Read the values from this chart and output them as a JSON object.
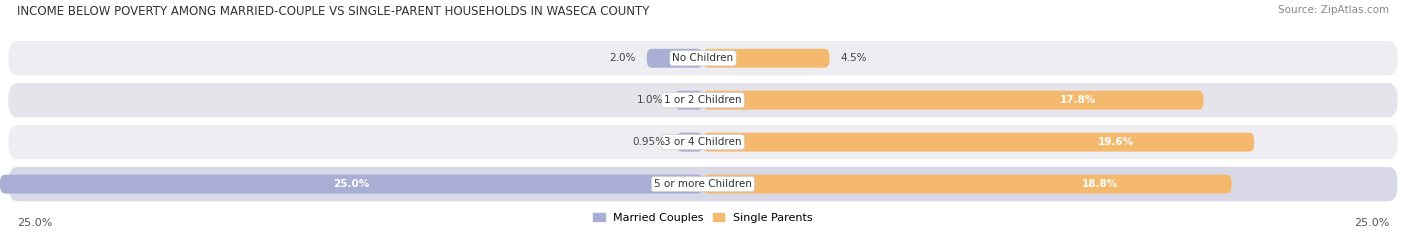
{
  "title": "INCOME BELOW POVERTY AMONG MARRIED-COUPLE VS SINGLE-PARENT HOUSEHOLDS IN WASECA COUNTY",
  "source": "Source: ZipAtlas.com",
  "categories": [
    "No Children",
    "1 or 2 Children",
    "3 or 4 Children",
    "5 or more Children"
  ],
  "married_values": [
    2.0,
    1.0,
    0.95,
    25.0
  ],
  "single_values": [
    4.5,
    17.8,
    19.6,
    18.8
  ],
  "married_color": "#a8aed4",
  "single_color": "#f5b96e",
  "row_bg_colors": [
    "#ededf2",
    "#e4e4ea",
    "#ededf2",
    "#d8d8e6"
  ],
  "max_value": 25.0,
  "title_fontsize": 8.5,
  "source_fontsize": 7.5,
  "label_fontsize": 7.5,
  "cat_fontsize": 7.5,
  "legend_fontsize": 8,
  "axis_label_fontsize": 8,
  "bottom_left_label": "25.0%",
  "bottom_right_label": "25.0%"
}
